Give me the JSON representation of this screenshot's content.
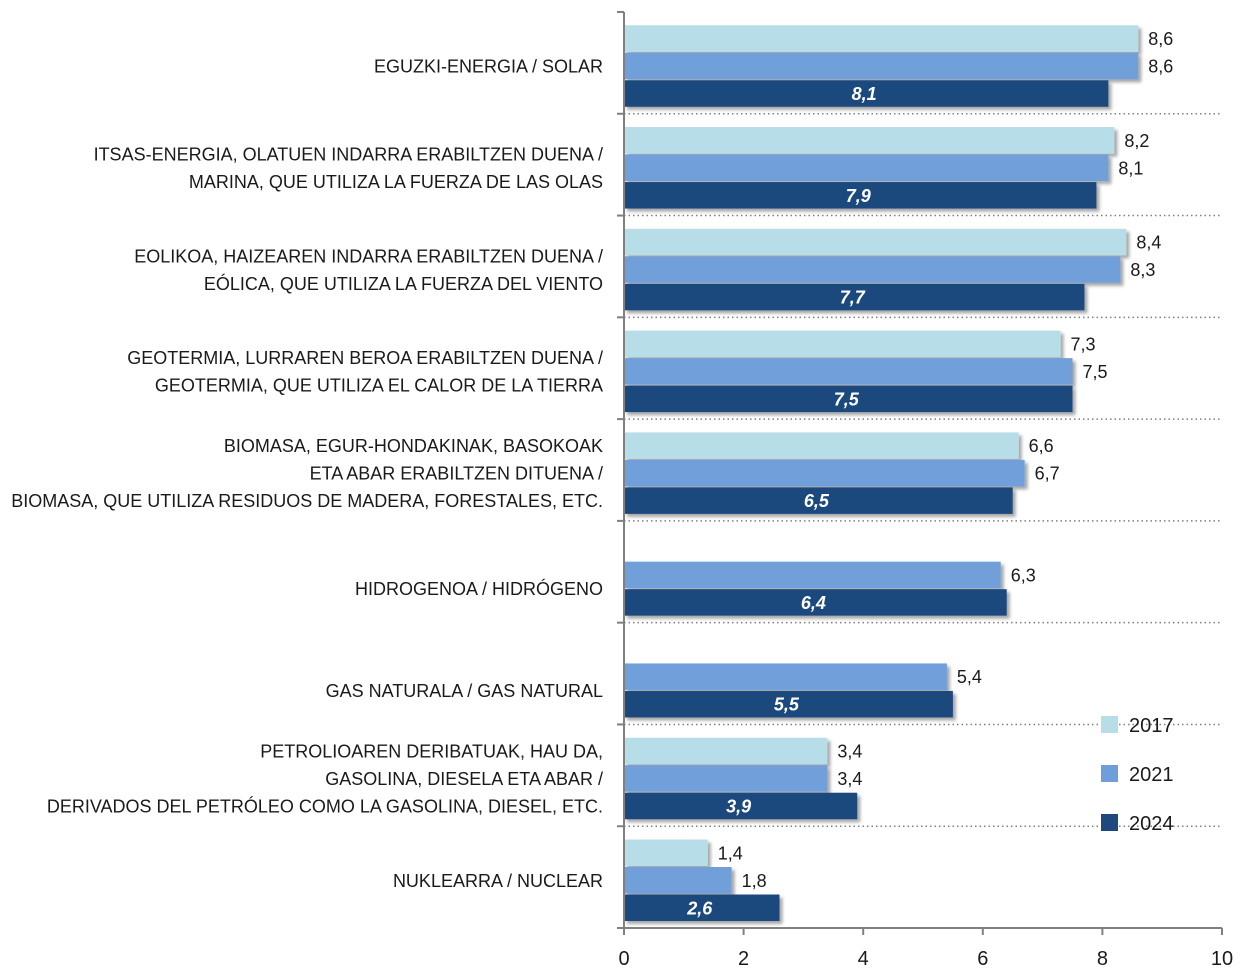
{
  "chart_data": {
    "type": "bar",
    "orientation": "horizontal",
    "xlim": [
      0,
      10
    ],
    "xticks": [
      "0",
      "2",
      "4",
      "6",
      "8",
      "10"
    ],
    "grid": false,
    "legend_position": "bottom-right",
    "categories": [
      [
        "EGUZKI-ENERGIA / SOLAR"
      ],
      [
        "ITSAS-ENERGIA, OLATUEN INDARRA ERABILTZEN DUENA /",
        "MARINA, QUE UTILIZA LA FUERZA DE LAS OLAS"
      ],
      [
        "EOLIKOA, HAIZEAREN INDARRA ERABILTZEN DUENA /",
        "EÓLICA, QUE UTILIZA LA FUERZA DEL VIENTO"
      ],
      [
        "GEOTERMIA, LURRAREN BEROA ERABILTZEN DUENA /",
        "GEOTERMIA, QUE UTILIZA EL CALOR DE LA TIERRA"
      ],
      [
        "BIOMASA, EGUR-HONDAKINAK, BASOKOAK",
        "ETA ABAR ERABILTZEN DITUENA /",
        "BIOMASA, QUE UTILIZA RESIDUOS DE MADERA, FORESTALES, ETC."
      ],
      [
        "HIDROGENOA / HIDRÓGENO"
      ],
      [
        "GAS NATURALA / GAS NATURAL"
      ],
      [
        "PETROLIOAREN DERIBATUAK, HAU DA,",
        "GASOLINA, DIESELA ETA ABAR /",
        "DERIVADOS DEL PETRÓLEO COMO LA GASOLINA, DIESEL, ETC."
      ],
      [
        "NUKLEARRA / NUCLEAR"
      ]
    ],
    "series": [
      {
        "name": "2017",
        "color": "#b7dde8",
        "values": [
          8.6,
          8.2,
          8.4,
          7.3,
          6.6,
          null,
          null,
          3.4,
          1.4
        ],
        "labels": [
          "8,6",
          "8,2",
          "8,4",
          "7,3",
          "6,6",
          null,
          null,
          "3,4",
          "1,4"
        ]
      },
      {
        "name": "2021",
        "color": "#6f9fda",
        "values": [
          8.6,
          8.1,
          8.3,
          7.5,
          6.7,
          6.3,
          5.4,
          3.4,
          1.8
        ],
        "labels": [
          "8,6",
          "8,1",
          "8,3",
          "7,5",
          "6,7",
          "6,3",
          "5,4",
          "3,4",
          "1,8"
        ]
      },
      {
        "name": "2024",
        "color": "#1f497d",
        "values": [
          8.1,
          7.9,
          7.7,
          7.5,
          6.5,
          6.4,
          5.5,
          3.9,
          2.6
        ],
        "labels": [
          "8,1",
          "7,9",
          "7,7",
          "7,5",
          "6,5",
          "6,4",
          "5,5",
          "3,9",
          "2,6"
        ]
      }
    ]
  }
}
